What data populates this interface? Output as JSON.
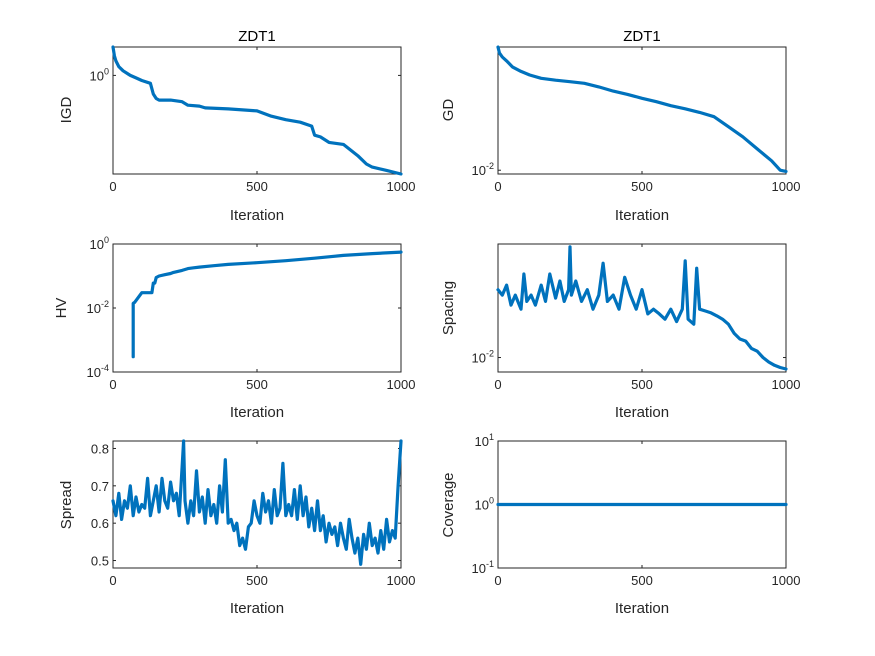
{
  "figure": {
    "background": "#ffffff",
    "line_color": "#0072BD"
  },
  "chart_data": [
    {
      "id": "igd",
      "type": "line",
      "title": "ZDT1",
      "xlabel": "Iteration",
      "ylabel": "IGD",
      "yscale": "log",
      "xlim": [
        0,
        1000
      ],
      "ylim": [
        0.13,
        1.8
      ],
      "xticks": [
        0,
        500,
        1000
      ],
      "yticks": [
        {
          "value": 1,
          "base": "10",
          "exp": "0"
        }
      ],
      "series": [
        {
          "name": "IGD",
          "color": "#0072BD",
          "x": [
            0,
            5,
            10,
            20,
            35,
            60,
            80,
            100,
            130,
            140,
            150,
            160,
            200,
            240,
            260,
            300,
            320,
            400,
            500,
            550,
            600,
            650,
            690,
            700,
            720,
            750,
            800,
            850,
            880,
            900,
            950,
            1000
          ],
          "y": [
            1.8,
            1.5,
            1.35,
            1.2,
            1.1,
            1.0,
            0.95,
            0.9,
            0.85,
            0.68,
            0.62,
            0.6,
            0.6,
            0.58,
            0.54,
            0.53,
            0.51,
            0.5,
            0.48,
            0.43,
            0.4,
            0.38,
            0.35,
            0.29,
            0.28,
            0.25,
            0.24,
            0.19,
            0.16,
            0.15,
            0.14,
            0.13
          ]
        }
      ]
    },
    {
      "id": "gd",
      "type": "line",
      "title": "ZDT1",
      "xlabel": "Iteration",
      "ylabel": "GD",
      "yscale": "log",
      "xlim": [
        0,
        1000
      ],
      "ylim": [
        0.0085,
        2.0
      ],
      "xticks": [
        0,
        500,
        1000
      ],
      "yticks": [
        {
          "value": 0.01,
          "base": "10",
          "exp": "-2"
        }
      ],
      "series": [
        {
          "name": "GD",
          "color": "#0072BD",
          "x": [
            0,
            5,
            15,
            30,
            50,
            80,
            110,
            150,
            200,
            250,
            300,
            350,
            400,
            450,
            500,
            550,
            600,
            650,
            700,
            750,
            800,
            850,
            900,
            950,
            980,
            1000
          ],
          "y": [
            2.0,
            1.55,
            1.3,
            1.1,
            0.85,
            0.7,
            0.6,
            0.52,
            0.48,
            0.45,
            0.42,
            0.36,
            0.3,
            0.26,
            0.22,
            0.19,
            0.16,
            0.14,
            0.12,
            0.1,
            0.065,
            0.042,
            0.025,
            0.015,
            0.01,
            0.0095
          ]
        }
      ]
    },
    {
      "id": "hv",
      "type": "line",
      "title": "",
      "xlabel": "Iteration",
      "ylabel": "HV",
      "yscale": "log",
      "xlim": [
        0,
        1000
      ],
      "ylim": [
        0.0001,
        1
      ],
      "xticks": [
        0,
        500,
        1000
      ],
      "yticks": [
        {
          "value": 0.0001,
          "base": "10",
          "exp": "-4"
        },
        {
          "value": 0.01,
          "base": "10",
          "exp": "-2"
        },
        {
          "value": 1,
          "base": "10",
          "exp": "0"
        }
      ],
      "series": [
        {
          "name": "HV",
          "color": "#0072BD",
          "x": [
            70,
            70,
            75,
            100,
            110,
            135,
            140,
            145,
            150,
            160,
            180,
            200,
            210,
            240,
            260,
            280,
            300,
            350,
            400,
            500,
            600,
            700,
            800,
            900,
            1000
          ],
          "y": [
            0.0003,
            0.014,
            0.015,
            0.03,
            0.03,
            0.03,
            0.06,
            0.06,
            0.09,
            0.1,
            0.11,
            0.12,
            0.13,
            0.15,
            0.17,
            0.18,
            0.19,
            0.21,
            0.23,
            0.26,
            0.3,
            0.36,
            0.44,
            0.5,
            0.56
          ]
        }
      ]
    },
    {
      "id": "spacing",
      "type": "line",
      "title": "",
      "xlabel": "Iteration",
      "ylabel": "Spacing",
      "yscale": "log",
      "xlim": [
        0,
        1000
      ],
      "ylim": [
        0.0066,
        0.26
      ],
      "xticks": [
        0,
        500,
        1000
      ],
      "yticks": [
        {
          "value": 0.01,
          "base": "10",
          "exp": "-2"
        }
      ],
      "series": [
        {
          "name": "Spacing",
          "color": "#0072BD",
          "x": [
            0,
            15,
            30,
            45,
            60,
            80,
            90,
            100,
            115,
            130,
            150,
            165,
            180,
            200,
            215,
            230,
            245,
            250,
            255,
            270,
            290,
            310,
            330,
            350,
            365,
            380,
            400,
            420,
            440,
            460,
            480,
            500,
            520,
            540,
            560,
            580,
            600,
            620,
            640,
            650,
            660,
            680,
            690,
            700,
            720,
            740,
            760,
            780,
            800,
            820,
            840,
            860,
            880,
            900,
            920,
            940,
            960,
            980,
            1000
          ],
          "y": [
            0.07,
            0.06,
            0.08,
            0.045,
            0.06,
            0.04,
            0.11,
            0.05,
            0.06,
            0.045,
            0.08,
            0.05,
            0.11,
            0.055,
            0.09,
            0.05,
            0.07,
            0.24,
            0.06,
            0.09,
            0.05,
            0.07,
            0.04,
            0.06,
            0.15,
            0.05,
            0.06,
            0.04,
            0.1,
            0.06,
            0.04,
            0.07,
            0.035,
            0.04,
            0.035,
            0.03,
            0.04,
            0.028,
            0.04,
            0.16,
            0.03,
            0.026,
            0.13,
            0.04,
            0.038,
            0.036,
            0.033,
            0.03,
            0.026,
            0.02,
            0.017,
            0.016,
            0.013,
            0.012,
            0.01,
            0.0088,
            0.008,
            0.0075,
            0.0072
          ]
        }
      ]
    },
    {
      "id": "spread",
      "type": "line",
      "title": "",
      "xlabel": "Iteration",
      "ylabel": "Spread",
      "yscale": "linear",
      "xlim": [
        0,
        1000
      ],
      "ylim": [
        0.48,
        0.82
      ],
      "xticks": [
        0,
        500,
        1000
      ],
      "yticks": [
        {
          "value": 0.5,
          "label": "0.5"
        },
        {
          "value": 0.6,
          "label": "0.6"
        },
        {
          "value": 0.7,
          "label": "0.7"
        },
        {
          "value": 0.8,
          "label": "0.8"
        }
      ],
      "series": [
        {
          "name": "Spread",
          "color": "#0072BD",
          "x": [
            0,
            10,
            20,
            30,
            40,
            50,
            60,
            70,
            80,
            90,
            100,
            110,
            120,
            130,
            140,
            150,
            160,
            170,
            180,
            190,
            200,
            210,
            220,
            230,
            240,
            245,
            250,
            260,
            270,
            280,
            290,
            300,
            310,
            320,
            330,
            340,
            350,
            360,
            370,
            380,
            390,
            400,
            410,
            420,
            430,
            440,
            450,
            460,
            470,
            480,
            490,
            500,
            510,
            520,
            530,
            540,
            550,
            560,
            570,
            580,
            590,
            600,
            610,
            620,
            630,
            640,
            650,
            660,
            670,
            680,
            690,
            700,
            710,
            720,
            730,
            740,
            750,
            760,
            770,
            780,
            790,
            800,
            810,
            820,
            830,
            840,
            850,
            860,
            870,
            880,
            890,
            900,
            910,
            920,
            930,
            940,
            950,
            960,
            970,
            980,
            990,
            1000
          ],
          "y": [
            0.66,
            0.62,
            0.68,
            0.61,
            0.66,
            0.64,
            0.7,
            0.62,
            0.67,
            0.63,
            0.65,
            0.64,
            0.72,
            0.62,
            0.66,
            0.7,
            0.63,
            0.72,
            0.66,
            0.64,
            0.71,
            0.66,
            0.68,
            0.62,
            0.75,
            0.82,
            0.66,
            0.6,
            0.66,
            0.62,
            0.74,
            0.63,
            0.67,
            0.6,
            0.69,
            0.62,
            0.65,
            0.6,
            0.7,
            0.63,
            0.77,
            0.6,
            0.61,
            0.58,
            0.6,
            0.54,
            0.56,
            0.53,
            0.59,
            0.6,
            0.66,
            0.62,
            0.6,
            0.68,
            0.63,
            0.66,
            0.6,
            0.69,
            0.62,
            0.64,
            0.76,
            0.62,
            0.65,
            0.62,
            0.69,
            0.61,
            0.7,
            0.62,
            0.67,
            0.59,
            0.64,
            0.58,
            0.66,
            0.58,
            0.62,
            0.55,
            0.6,
            0.57,
            0.59,
            0.54,
            0.6,
            0.56,
            0.53,
            0.61,
            0.56,
            0.52,
            0.56,
            0.49,
            0.57,
            0.53,
            0.6,
            0.54,
            0.56,
            0.52,
            0.58,
            0.53,
            0.61,
            0.55,
            0.58,
            0.56,
            0.7,
            0.82
          ]
        }
      ]
    },
    {
      "id": "coverage",
      "type": "line",
      "title": "",
      "xlabel": "Iteration",
      "ylabel": "Coverage",
      "yscale": "log",
      "xlim": [
        0,
        1000
      ],
      "ylim": [
        0.1,
        10
      ],
      "xticks": [
        0,
        500,
        1000
      ],
      "yticks": [
        {
          "value": 0.1,
          "base": "10",
          "exp": "-1"
        },
        {
          "value": 1,
          "base": "10",
          "exp": "0"
        },
        {
          "value": 10,
          "base": "10",
          "exp": "1"
        }
      ],
      "series": [
        {
          "name": "Coverage",
          "color": "#0072BD",
          "x": [
            0,
            1000
          ],
          "y": [
            1,
            1
          ]
        }
      ]
    }
  ]
}
